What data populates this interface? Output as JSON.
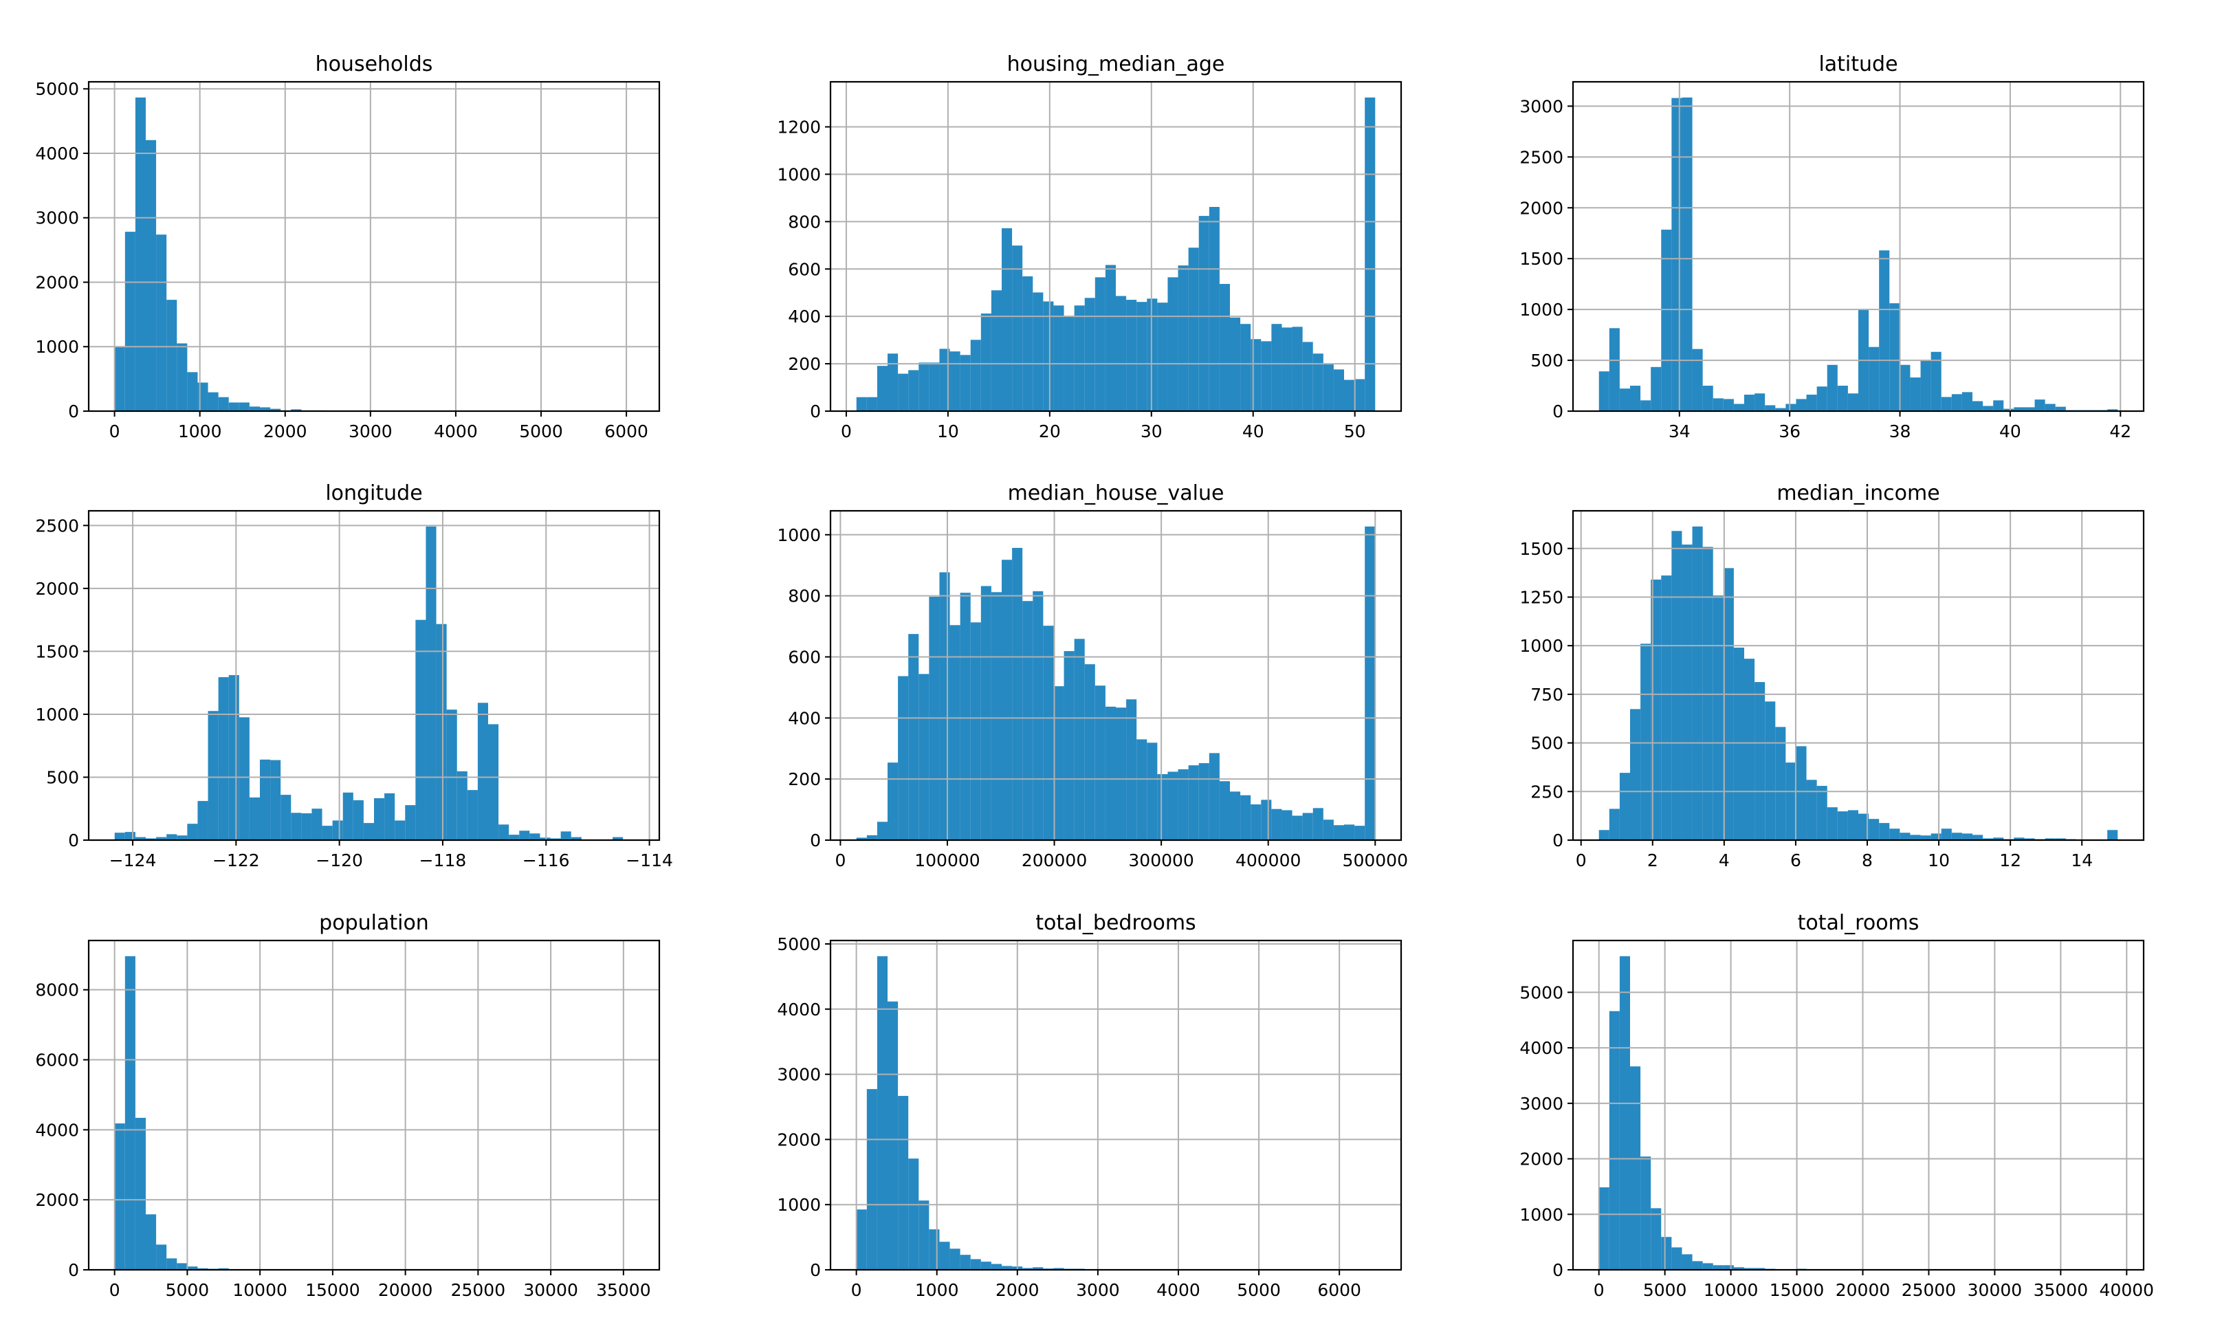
{
  "chart_data": [
    {
      "type": "bar",
      "title": "households",
      "bin_range": [
        1,
        6082
      ],
      "bins": 50,
      "values": [
        1000,
        2783,
        4866,
        4205,
        2739,
        1727,
        1051,
        605,
        443,
        292,
        217,
        134,
        134,
        71,
        59,
        36,
        12,
        28,
        12,
        12,
        8,
        5,
        4,
        3,
        2,
        2,
        1,
        1,
        1,
        0,
        1,
        0,
        0,
        1,
        0,
        0,
        0,
        0,
        0,
        0,
        0,
        0,
        0,
        0,
        0,
        0,
        0,
        0,
        0,
        1
      ],
      "xticks": [
        0,
        1000,
        2000,
        3000,
        4000,
        5000,
        6000
      ],
      "xtick_labels": [
        "0",
        "1000",
        "2000",
        "3000",
        "4000",
        "5000",
        "6000"
      ],
      "yticks": [
        0,
        1000,
        2000,
        3000,
        4000,
        5000
      ],
      "ytick_labels": [
        "0",
        "1000",
        "2000",
        "3000",
        "4000",
        "5000"
      ],
      "grid": true
    },
    {
      "type": "bar",
      "title": "housing_median_age",
      "bin_range": [
        1,
        52
      ],
      "bins": 50,
      "values": [
        59,
        59,
        191,
        243,
        158,
        173,
        205,
        205,
        263,
        252,
        237,
        301,
        412,
        510,
        772,
        699,
        569,
        501,
        463,
        446,
        402,
        446,
        478,
        565,
        617,
        486,
        470,
        461,
        475,
        458,
        565,
        615,
        690,
        824,
        862,
        537,
        395,
        368,
        304,
        295,
        368,
        353,
        356,
        292,
        243,
        200,
        176,
        132,
        135,
        1324
      ],
      "xticks": [
        0,
        10,
        20,
        30,
        40,
        50
      ],
      "xtick_labels": [
        "0",
        "10",
        "20",
        "30",
        "40",
        "50"
      ],
      "yticks": [
        0,
        200,
        400,
        600,
        800,
        1000,
        1200
      ],
      "ytick_labels": [
        "0",
        "200",
        "400",
        "600",
        "800",
        "1000",
        "1200"
      ],
      "grid": true
    },
    {
      "type": "bar",
      "title": "latitude",
      "bin_range": [
        32.54,
        41.95
      ],
      "bins": 50,
      "values": [
        391,
        816,
        222,
        250,
        106,
        434,
        1785,
        3080,
        3085,
        611,
        250,
        126,
        119,
        71,
        162,
        174,
        58,
        30,
        71,
        119,
        162,
        242,
        455,
        250,
        174,
        1000,
        631,
        1581,
        1061,
        455,
        331,
        495,
        583,
        139,
        167,
        187,
        98,
        51,
        106,
        23,
        38,
        38,
        114,
        71,
        43,
        10,
        10,
        10,
        10,
        18
      ],
      "xticks": [
        34,
        36,
        38,
        40,
        42
      ],
      "xtick_labels": [
        "34",
        "36",
        "38",
        "40",
        "42"
      ],
      "yticks": [
        0,
        500,
        1000,
        1500,
        2000,
        2500,
        3000
      ],
      "ytick_labels": [
        "0",
        "500",
        "1000",
        "1500",
        "2000",
        "2500",
        "3000"
      ],
      "grid": true
    },
    {
      "type": "bar",
      "title": "longitude",
      "bin_range": [
        -124.35,
        -114.31
      ],
      "bins": 50,
      "values": [
        59,
        65,
        24,
        14,
        24,
        47,
        37,
        130,
        311,
        1026,
        1295,
        1311,
        976,
        339,
        640,
        636,
        360,
        217,
        213,
        250,
        114,
        156,
        378,
        317,
        136,
        333,
        372,
        156,
        278,
        1750,
        2492,
        1717,
        1037,
        547,
        398,
        1091,
        921,
        124,
        43,
        75,
        53,
        20,
        14,
        69,
        24,
        2,
        1,
        1,
        24,
        2
      ],
      "xticks": [
        -124,
        -122,
        -120,
        -118,
        -116,
        -114
      ],
      "xtick_labels": [
        "−124",
        "−122",
        "−120",
        "−118",
        "−116",
        "−114"
      ],
      "yticks": [
        0,
        500,
        1000,
        1500,
        2000,
        2500
      ],
      "ytick_labels": [
        "0",
        "500",
        "1000",
        "1500",
        "2000",
        "2500"
      ],
      "grid": true
    },
    {
      "type": "bar",
      "title": "median_house_value",
      "bin_range": [
        14999,
        500001
      ],
      "bins": 50,
      "values": [
        8,
        16,
        60,
        254,
        537,
        675,
        544,
        797,
        877,
        704,
        810,
        713,
        832,
        812,
        918,
        957,
        783,
        815,
        702,
        504,
        619,
        659,
        576,
        506,
        437,
        434,
        461,
        330,
        319,
        216,
        224,
        232,
        245,
        252,
        285,
        193,
        159,
        147,
        117,
        132,
        102,
        98,
        80,
        89,
        105,
        67,
        49,
        51,
        47,
        1027
      ],
      "xticks": [
        0,
        100000,
        200000,
        300000,
        400000,
        500000
      ],
      "xtick_labels": [
        "0",
        "100000",
        "200000",
        "300000",
        "400000",
        "500000"
      ],
      "yticks": [
        0,
        200,
        400,
        600,
        800,
        1000
      ],
      "ytick_labels": [
        "0",
        "200",
        "400",
        "600",
        "800",
        "1000"
      ],
      "grid": true
    },
    {
      "type": "bar",
      "title": "median_income",
      "bin_range": [
        0.4999,
        15.0001
      ],
      "bins": 50,
      "values": [
        52,
        161,
        346,
        674,
        1010,
        1340,
        1361,
        1590,
        1520,
        1613,
        1508,
        1258,
        1399,
        990,
        933,
        813,
        713,
        582,
        399,
        483,
        310,
        279,
        169,
        148,
        154,
        136,
        109,
        88,
        59,
        38,
        27,
        24,
        34,
        59,
        38,
        34,
        27,
        9,
        13,
        5,
        13,
        9,
        5,
        9,
        9,
        5,
        2,
        2,
        2,
        52
      ],
      "xticks": [
        0,
        2,
        4,
        6,
        8,
        10,
        12,
        14
      ],
      "xtick_labels": [
        "0",
        "2",
        "4",
        "6",
        "8",
        "10",
        "12",
        "14"
      ],
      "yticks": [
        0,
        250,
        500,
        750,
        1000,
        1250,
        1500
      ],
      "ytick_labels": [
        "0",
        "250",
        "500",
        "750",
        "1000",
        "1250",
        "1500"
      ],
      "grid": true
    },
    {
      "type": "bar",
      "title": "population",
      "bin_range": [
        3,
        35682
      ],
      "bins": 50,
      "values": [
        4182,
        8960,
        4342,
        1585,
        720,
        327,
        189,
        95,
        44,
        29,
        44,
        10,
        6,
        4,
        3,
        2,
        2,
        1,
        1,
        1,
        0,
        0,
        1,
        0,
        0,
        0,
        0,
        0,
        0,
        0,
        0,
        0,
        0,
        0,
        0,
        0,
        0,
        0,
        0,
        0,
        0,
        0,
        0,
        0,
        0,
        0,
        0,
        0,
        0,
        1
      ],
      "xticks": [
        0,
        5000,
        10000,
        15000,
        20000,
        25000,
        30000,
        35000
      ],
      "xtick_labels": [
        "0",
        "5000",
        "10000",
        "15000",
        "20000",
        "25000",
        "30000",
        "35000"
      ],
      "yticks": [
        0,
        2000,
        4000,
        6000,
        8000
      ],
      "ytick_labels": [
        "0",
        "2000",
        "4000",
        "6000",
        "8000"
      ],
      "grid": true
    },
    {
      "type": "bar",
      "title": "total_bedrooms",
      "bin_range": [
        1,
        6445
      ],
      "bins": 50,
      "values": [
        926,
        2773,
        4812,
        4117,
        2668,
        1707,
        1063,
        621,
        430,
        324,
        230,
        164,
        125,
        90,
        59,
        51,
        27,
        39,
        20,
        27,
        16,
        16,
        10,
        8,
        6,
        5,
        4,
        3,
        2,
        2,
        1,
        1,
        1,
        0,
        1,
        0,
        0,
        1,
        0,
        0,
        0,
        0,
        0,
        0,
        1,
        0,
        0,
        0,
        0,
        1
      ],
      "xticks": [
        0,
        1000,
        2000,
        3000,
        4000,
        5000,
        6000
      ],
      "xtick_labels": [
        "0",
        "1000",
        "2000",
        "3000",
        "4000",
        "5000",
        "6000"
      ],
      "yticks": [
        0,
        1000,
        2000,
        3000,
        4000,
        5000
      ],
      "ytick_labels": [
        "0",
        "1000",
        "2000",
        "3000",
        "4000",
        "5000"
      ],
      "grid": true
    },
    {
      "type": "bar",
      "title": "total_rooms",
      "bin_range": [
        2,
        39320
      ],
      "bins": 50,
      "values": [
        1486,
        4661,
        5651,
        3665,
        2041,
        1110,
        592,
        404,
        280,
        156,
        119,
        83,
        83,
        46,
        32,
        32,
        18,
        9,
        9,
        18,
        6,
        5,
        4,
        3,
        2,
        2,
        1,
        1,
        0,
        1,
        0,
        1,
        0,
        0,
        0,
        0,
        0,
        0,
        0,
        0,
        0,
        0,
        0,
        0,
        0,
        0,
        0,
        0,
        0,
        1
      ],
      "xticks": [
        0,
        5000,
        10000,
        15000,
        20000,
        25000,
        30000,
        35000,
        40000
      ],
      "xtick_labels": [
        "0",
        "5000",
        "10000",
        "15000",
        "20000",
        "25000",
        "30000",
        "35000",
        "40000"
      ],
      "yticks": [
        0,
        1000,
        2000,
        3000,
        4000,
        5000
      ],
      "ytick_labels": [
        "0",
        "1000",
        "2000",
        "3000",
        "4000",
        "5000"
      ],
      "grid": true
    }
  ],
  "colors": {
    "bar": "#2789c2",
    "grid": "#b0b0b0",
    "axes": "#000000"
  }
}
